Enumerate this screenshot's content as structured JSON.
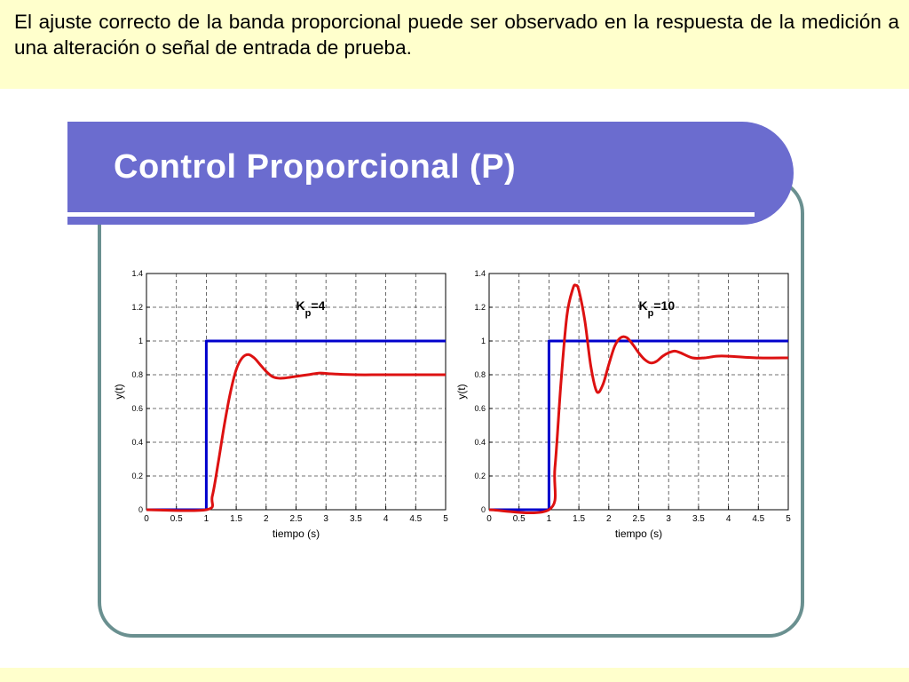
{
  "caption": "El ajuste correcto de la banda proporcional puede ser observado en la respuesta de la medición a una alteración o señal de entrada de prueba.",
  "slide_title": "Control Proporcional (P)",
  "colors": {
    "banner": "#6b6ccf",
    "frame": "#6a9090",
    "setpoint": "#0000cc",
    "response": "#dd1111",
    "background": "#ffffcc"
  },
  "chart_data": [
    {
      "type": "line",
      "annotation": {
        "main": "K",
        "sub": "p",
        "value": "=4"
      },
      "xlabel": "tiempo (s)",
      "ylabel": "y(t)",
      "xlim": [
        0,
        5
      ],
      "ylim": [
        0,
        1.4
      ],
      "x_ticks": [
        "0",
        "0.5",
        "1",
        "1.5",
        "2",
        "2.5",
        "3",
        "3.5",
        "4",
        "4.5",
        "5"
      ],
      "y_ticks": [
        "0",
        "0.2",
        "0.4",
        "0.6",
        "0.8",
        "1",
        "1.2",
        "1.4"
      ],
      "grid": true,
      "series": [
        {
          "x": [
            0,
            1,
            1,
            5
          ],
          "y": [
            0,
            0,
            1,
            1
          ]
        },
        {
          "x": [
            0,
            1.0,
            1.1,
            1.2,
            1.3,
            1.4,
            1.5,
            1.6,
            1.7,
            1.8,
            1.9,
            2.0,
            2.1,
            2.2,
            2.3,
            2.4,
            2.5,
            2.7,
            2.9,
            3.1,
            3.5,
            4.0,
            5.0
          ],
          "y": [
            0,
            0,
            0.08,
            0.28,
            0.5,
            0.69,
            0.83,
            0.9,
            0.92,
            0.9,
            0.86,
            0.82,
            0.79,
            0.78,
            0.78,
            0.785,
            0.79,
            0.8,
            0.81,
            0.805,
            0.8,
            0.8,
            0.8
          ]
        }
      ]
    },
    {
      "type": "line",
      "annotation": {
        "main": "K",
        "sub": "p",
        "value": "=10"
      },
      "xlabel": "tiempo (s)",
      "ylabel": "y(t)",
      "xlim": [
        0,
        5
      ],
      "ylim": [
        0,
        1.4
      ],
      "x_ticks": [
        "0",
        "0.5",
        "1",
        "1.5",
        "2",
        "2.5",
        "3",
        "3.5",
        "4",
        "4.5",
        "5"
      ],
      "y_ticks": [
        "0",
        "0.2",
        "0.4",
        "0.6",
        "0.8",
        "1",
        "1.2",
        "1.4"
      ],
      "grid": true,
      "series": [
        {
          "x": [
            0,
            1,
            1,
            5
          ],
          "y": [
            0,
            0,
            1,
            1
          ]
        },
        {
          "x": [
            0,
            1.0,
            1.1,
            1.2,
            1.3,
            1.4,
            1.45,
            1.5,
            1.6,
            1.7,
            1.8,
            1.9,
            2.0,
            2.1,
            2.2,
            2.3,
            2.4,
            2.5,
            2.6,
            2.7,
            2.8,
            2.9,
            3.0,
            3.1,
            3.2,
            3.4,
            3.6,
            3.8,
            4.0,
            4.5,
            5.0
          ],
          "y": [
            0,
            0,
            0.25,
            0.75,
            1.15,
            1.31,
            1.33,
            1.3,
            1.12,
            0.85,
            0.7,
            0.74,
            0.86,
            0.97,
            1.02,
            1.02,
            0.98,
            0.93,
            0.89,
            0.87,
            0.88,
            0.91,
            0.93,
            0.94,
            0.93,
            0.9,
            0.9,
            0.91,
            0.91,
            0.9,
            0.9
          ]
        }
      ]
    }
  ]
}
